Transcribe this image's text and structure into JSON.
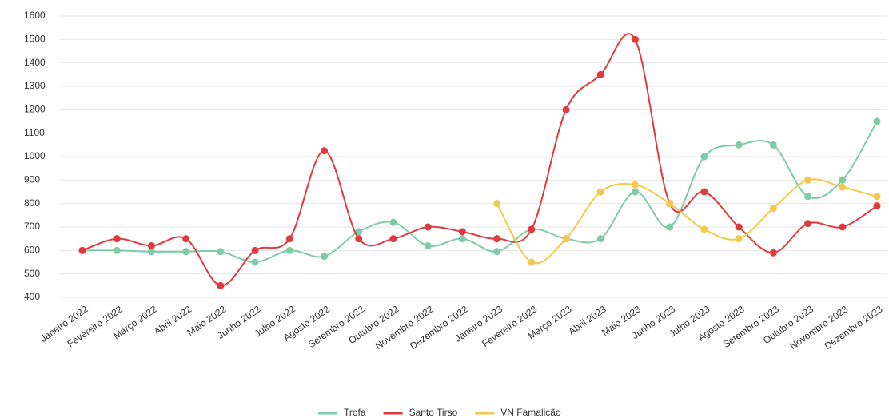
{
  "chart_data": {
    "type": "line",
    "categories": [
      "Janeiro 2022",
      "Fevereiro 2022",
      "Março 2022",
      "Abril 2022",
      "Maio 2022",
      "Junho 2022",
      "Julho 2022",
      "Agosto 2022",
      "Setembro 2022",
      "Outubro 2022",
      "Novembro 2022",
      "Dezembro 2022",
      "Janeiro 2023",
      "Fevereiro 2023",
      "Março 2023",
      "Abril 2023",
      "Maio 2023",
      "Junho 2023",
      "Julho 2023",
      "Agosto 2023",
      "Setembro 2023",
      "Outubro 2023",
      "Novembro 2023",
      "Dezembro 2023"
    ],
    "series": [
      {
        "name": "Trofa",
        "color": "#7ecba8",
        "values": [
          600,
          600,
          595,
          595,
          595,
          550,
          600,
          575,
          680,
          720,
          620,
          650,
          595,
          690,
          650,
          650,
          850,
          700,
          1000,
          1050,
          1050,
          830,
          900,
          1150
        ]
      },
      {
        "name": "Santo Tirso",
        "color": "#e03a3e",
        "values": [
          600,
          650,
          620,
          650,
          450,
          600,
          650,
          1025,
          650,
          650,
          700,
          680,
          650,
          690,
          1200,
          1350,
          1500,
          800,
          850,
          700,
          590,
          715,
          700,
          790
        ]
      },
      {
        "name": "VN Famalicão",
        "color": "#f2c94c",
        "values": [
          null,
          null,
          null,
          null,
          null,
          null,
          null,
          null,
          null,
          null,
          null,
          null,
          800,
          550,
          650,
          850,
          880,
          800,
          690,
          650,
          780,
          900,
          870,
          830
        ]
      }
    ],
    "ylim": [
      400,
      1600
    ],
    "yticks": [
      400,
      500,
      600,
      700,
      800,
      900,
      1000,
      1100,
      1200,
      1300,
      1400,
      1500,
      1600
    ],
    "grid": true,
    "legend": "bottom"
  }
}
